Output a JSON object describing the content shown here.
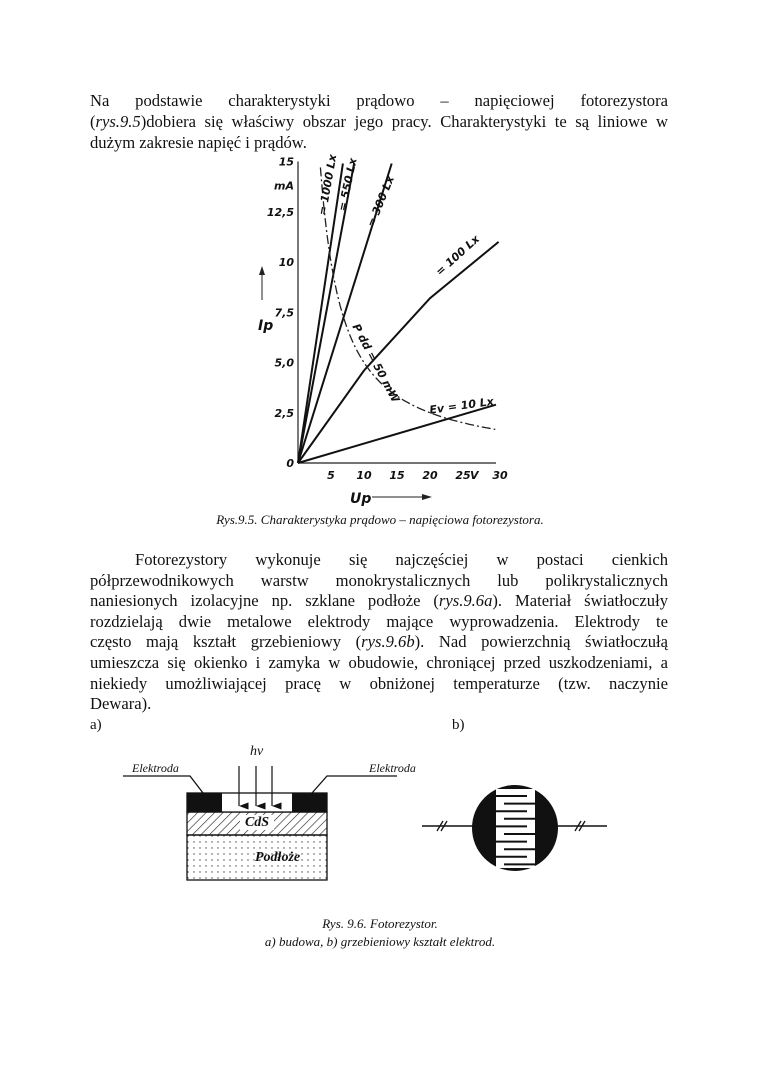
{
  "paragraph1": [
    [
      {
        "t": "Na podstawie charakterystyki prądowo – napięciowej fotorezystora"
      }
    ],
    [
      {
        "t": "(",
        "i": false
      },
      {
        "t": "rys.9.5",
        "i": true
      },
      {
        "t": ")dobiera się właściwy obszar jego pracy. Charakterystyki te są liniowe w"
      }
    ],
    [
      {
        "t": "dużym zakresie napięć i prądów."
      }
    ]
  ],
  "figure1_caption": "Rys.9.5. Charakterystyka prądowo – napięciowa fotorezystora.",
  "paragraph2": [
    [
      {
        "t": "Fotorezystory wykonuje się najczęściej w postaci cienkich"
      }
    ],
    [
      {
        "t": "półprzewodnikowych warstw monokrystalicznych lub polikrystalicznych"
      }
    ],
    [
      {
        "t": "naniesionych izolacyjne np. szklane podłoże ("
      },
      {
        "t": "rys.9.6a",
        "i": true
      },
      {
        "t": "). Materiał światłoczuły"
      }
    ],
    [
      {
        "t": "rozdzielają dwie metalowe elektrody mające wyprowadzenia. Elektrody te"
      }
    ],
    [
      {
        "t": "często mają kształt grzebieniowy ("
      },
      {
        "t": "rys.9.6b",
        "i": true
      },
      {
        "t": "). Nad powierzchnią światłoczułą"
      }
    ],
    [
      {
        "t": "umieszcza się okienko i zamyka w obudowie, chroniącej przed uszkodzeniami, a"
      }
    ],
    [
      {
        "t": "niekiedy umożliwiającej pracę w obniżonej temperaturze (tzw. naczynie"
      }
    ],
    [
      {
        "t": "Dewara)."
      }
    ]
  ],
  "figure2": {
    "label_a": "a)",
    "label_b": "b)",
    "electrode_left": "Elektroda",
    "electrode_right": "Elektroda",
    "light": "hν",
    "layer_cds": "CdS",
    "layer_substrate": "Podłoże",
    "caption_line1": "Rys. 9.6. Fotorezystor.",
    "caption_line2": "a) budowa, b) grzebieniowy kształt elektrod."
  },
  "chart_data": {
    "type": "line",
    "xlabel": "Up",
    "ylabel": "Ip",
    "x_unit": "V",
    "y_unit": "mA",
    "xlim": [
      0,
      30
    ],
    "ylim": [
      0,
      15
    ],
    "x_ticks": [
      "5",
      "10",
      "15",
      "20",
      "25",
      "30"
    ],
    "x_tick_values": [
      5,
      10,
      15,
      20,
      25,
      30
    ],
    "y_ticks": [
      "0",
      "2,5",
      "5,0",
      "7,5",
      "10",
      "12,5",
      "15"
    ],
    "y_tick_values": [
      0,
      2.5,
      5,
      7.5,
      10,
      12.5,
      15
    ],
    "grid": false,
    "series": [
      {
        "name": "Ev = 10 Lx",
        "label": "Ev = 10 Lx",
        "x": [
          0,
          30
        ],
        "y": [
          0,
          2.9
        ],
        "style": "solid"
      },
      {
        "name": "100 Lx",
        "label": "= 100 Lx",
        "x": [
          0,
          10,
          20,
          30.4
        ],
        "y": [
          0,
          4.6,
          8.2,
          11
        ],
        "style": "solid"
      },
      {
        "name": "300 Lx",
        "label": "= 300 Lx",
        "x": [
          0,
          14.2
        ],
        "y": [
          0,
          14.9
        ],
        "style": "solid"
      },
      {
        "name": "550 Lx",
        "label": "= 550 Lx",
        "x": [
          0,
          8.5
        ],
        "y": [
          0,
          14.9
        ],
        "style": "solid"
      },
      {
        "name": "1000 Lx",
        "label": "= 1000 Lx",
        "x": [
          0,
          6.8
        ],
        "y": [
          0,
          14.9
        ],
        "style": "solid"
      },
      {
        "name": "P dd = 50 mW",
        "label": "P dd = 50 mW",
        "x": [
          3.4,
          4,
          5,
          7.5,
          10,
          15,
          20,
          25,
          30
        ],
        "y": [
          14.7,
          12.5,
          10,
          6.67,
          5,
          3.33,
          2.5,
          2,
          1.67
        ],
        "style": "dash-dot"
      }
    ]
  }
}
